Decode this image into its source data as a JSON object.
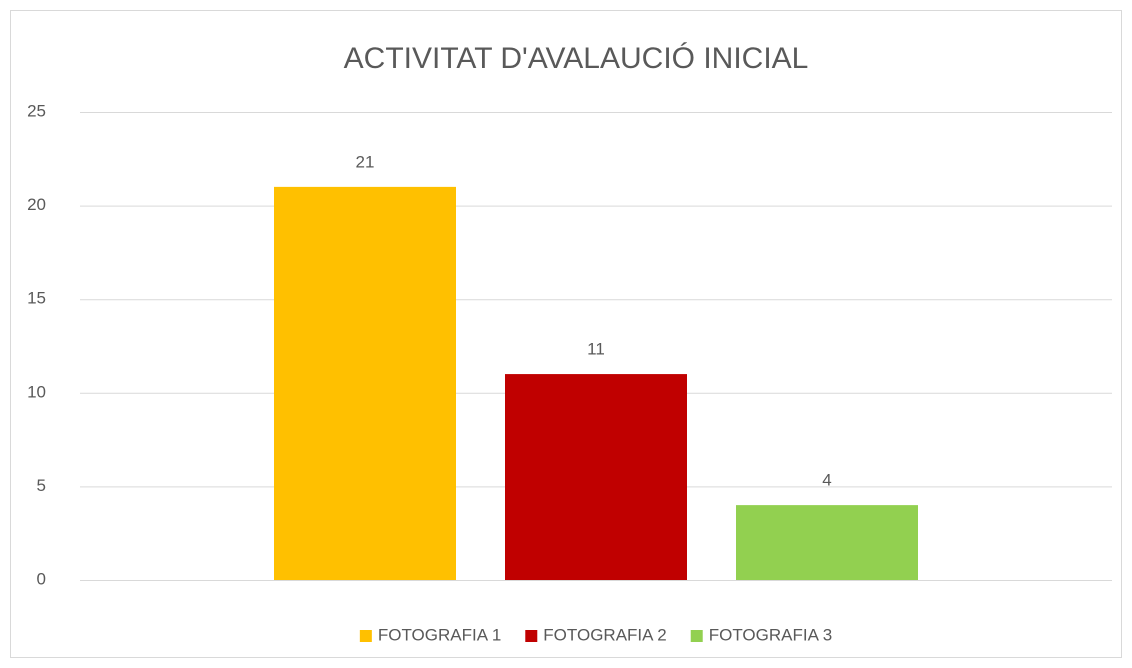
{
  "chart_data": {
    "type": "bar",
    "title": "ACTIVITAT D'AVALAUCIÓ INICIAL",
    "categories": [
      null
    ],
    "series": [
      {
        "name": "FOTOGRAFIA 1",
        "color": "#ffc000",
        "values": [
          21
        ]
      },
      {
        "name": "FOTOGRAFIA 2",
        "color": "#c00000",
        "values": [
          11
        ]
      },
      {
        "name": "FOTOGRAFIA 3",
        "color": "#92d050",
        "values": [
          4
        ]
      }
    ],
    "ylim": [
      0,
      25
    ],
    "yticks": [
      0,
      5,
      10,
      15,
      20,
      25
    ],
    "grid": true,
    "legend": "bottom"
  }
}
